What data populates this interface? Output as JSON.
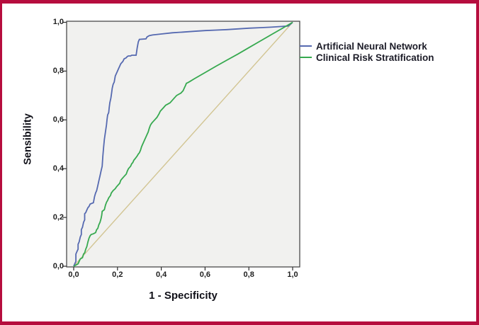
{
  "frame": {
    "border_color": "#b60d3e",
    "background": "#ffffff"
  },
  "chart_data": {
    "type": "line",
    "title": "",
    "xlabel": "1 - Specificity",
    "ylabel": "Sensibility",
    "xlim": [
      0,
      1
    ],
    "ylim": [
      0,
      1
    ],
    "grid": false,
    "plot_background": "#f1f1ef",
    "plot_border_color": "#3d3d3d",
    "tick_color": "#2b2b2b",
    "decimal_separator": ",",
    "ticks": {
      "values": [
        0,
        0.2,
        0.4,
        0.6,
        0.8,
        1.0
      ],
      "x_labels": [
        "0,0",
        "0,2",
        "0,4",
        "0,6",
        "0,8",
        "1,0"
      ],
      "y_labels": [
        "0,0",
        "0,2",
        "0,4",
        "0,6",
        "0,8",
        "1,0"
      ]
    },
    "legend": {
      "position": "right-top",
      "entries": [
        {
          "label": "Artificial Neural Network",
          "color": "#5569b0"
        },
        {
          "label": "Clinical Risk Stratification",
          "color": "#36a94f"
        }
      ]
    },
    "series": [
      {
        "name": "Reference Line",
        "color": "#d2c593",
        "points": [
          [
            0,
            0
          ],
          [
            1,
            1
          ]
        ]
      },
      {
        "name": "Artificial Neural Network",
        "color": "#5569b0",
        "points": [
          [
            0,
            0
          ],
          [
            0.005,
            0.01
          ],
          [
            0.01,
            0.02
          ],
          [
            0.01,
            0.05
          ],
          [
            0.015,
            0.06
          ],
          [
            0.02,
            0.07
          ],
          [
            0.02,
            0.09
          ],
          [
            0.025,
            0.1
          ],
          [
            0.03,
            0.12
          ],
          [
            0.035,
            0.13
          ],
          [
            0.035,
            0.15
          ],
          [
            0.04,
            0.16
          ],
          [
            0.045,
            0.18
          ],
          [
            0.05,
            0.19
          ],
          [
            0.05,
            0.215
          ],
          [
            0.055,
            0.22
          ],
          [
            0.06,
            0.23
          ],
          [
            0.065,
            0.24
          ],
          [
            0.07,
            0.245
          ],
          [
            0.075,
            0.255
          ],
          [
            0.09,
            0.26
          ],
          [
            0.095,
            0.285
          ],
          [
            0.1,
            0.3
          ],
          [
            0.105,
            0.31
          ],
          [
            0.11,
            0.33
          ],
          [
            0.115,
            0.35
          ],
          [
            0.12,
            0.37
          ],
          [
            0.125,
            0.39
          ],
          [
            0.13,
            0.41
          ],
          [
            0.133,
            0.45
          ],
          [
            0.137,
            0.49
          ],
          [
            0.14,
            0.52
          ],
          [
            0.145,
            0.55
          ],
          [
            0.15,
            0.58
          ],
          [
            0.152,
            0.6
          ],
          [
            0.155,
            0.62
          ],
          [
            0.16,
            0.63
          ],
          [
            0.162,
            0.65
          ],
          [
            0.165,
            0.67
          ],
          [
            0.17,
            0.69
          ],
          [
            0.173,
            0.71
          ],
          [
            0.176,
            0.73
          ],
          [
            0.18,
            0.745
          ],
          [
            0.185,
            0.755
          ],
          [
            0.188,
            0.77
          ],
          [
            0.19,
            0.78
          ],
          [
            0.195,
            0.79
          ],
          [
            0.2,
            0.8
          ],
          [
            0.205,
            0.81
          ],
          [
            0.21,
            0.82
          ],
          [
            0.215,
            0.83
          ],
          [
            0.225,
            0.84
          ],
          [
            0.23,
            0.85
          ],
          [
            0.24,
            0.855
          ],
          [
            0.245,
            0.86
          ],
          [
            0.25,
            0.862
          ],
          [
            0.26,
            0.862
          ],
          [
            0.265,
            0.865
          ],
          [
            0.285,
            0.865
          ],
          [
            0.29,
            0.895
          ],
          [
            0.295,
            0.92
          ],
          [
            0.3,
            0.93
          ],
          [
            0.33,
            0.932
          ],
          [
            0.335,
            0.94
          ],
          [
            0.345,
            0.945
          ],
          [
            0.36,
            0.948
          ],
          [
            0.4,
            0.952
          ],
          [
            0.45,
            0.957
          ],
          [
            0.5,
            0.96
          ],
          [
            0.55,
            0.963
          ],
          [
            0.6,
            0.966
          ],
          [
            0.65,
            0.968
          ],
          [
            0.7,
            0.97
          ],
          [
            0.75,
            0.973
          ],
          [
            0.8,
            0.976
          ],
          [
            0.85,
            0.978
          ],
          [
            0.9,
            0.98
          ],
          [
            0.95,
            0.983
          ],
          [
            0.98,
            0.985
          ],
          [
            1,
            1
          ]
        ]
      },
      {
        "name": "Clinical Risk Stratification",
        "color": "#36a94f",
        "points": [
          [
            0,
            0
          ],
          [
            0.01,
            0.005
          ],
          [
            0.02,
            0.01
          ],
          [
            0.025,
            0.02
          ],
          [
            0.03,
            0.03
          ],
          [
            0.04,
            0.035
          ],
          [
            0.045,
            0.05
          ],
          [
            0.05,
            0.055
          ],
          [
            0.055,
            0.07
          ],
          [
            0.06,
            0.08
          ],
          [
            0.065,
            0.1
          ],
          [
            0.07,
            0.115
          ],
          [
            0.075,
            0.125
          ],
          [
            0.08,
            0.13
          ],
          [
            0.09,
            0.133
          ],
          [
            0.1,
            0.138
          ],
          [
            0.105,
            0.15
          ],
          [
            0.11,
            0.155
          ],
          [
            0.115,
            0.17
          ],
          [
            0.12,
            0.18
          ],
          [
            0.125,
            0.195
          ],
          [
            0.128,
            0.21
          ],
          [
            0.13,
            0.225
          ],
          [
            0.14,
            0.232
          ],
          [
            0.145,
            0.25
          ],
          [
            0.15,
            0.262
          ],
          [
            0.155,
            0.27
          ],
          [
            0.16,
            0.28
          ],
          [
            0.168,
            0.29
          ],
          [
            0.172,
            0.3
          ],
          [
            0.18,
            0.31
          ],
          [
            0.19,
            0.318
          ],
          [
            0.195,
            0.325
          ],
          [
            0.2,
            0.33
          ],
          [
            0.21,
            0.34
          ],
          [
            0.215,
            0.352
          ],
          [
            0.22,
            0.358
          ],
          [
            0.23,
            0.368
          ],
          [
            0.24,
            0.378
          ],
          [
            0.245,
            0.39
          ],
          [
            0.25,
            0.4
          ],
          [
            0.26,
            0.41
          ],
          [
            0.265,
            0.42
          ],
          [
            0.27,
            0.425
          ],
          [
            0.275,
            0.435
          ],
          [
            0.28,
            0.44
          ],
          [
            0.29,
            0.452
          ],
          [
            0.295,
            0.46
          ],
          [
            0.3,
            0.465
          ],
          [
            0.305,
            0.475
          ],
          [
            0.31,
            0.49
          ],
          [
            0.315,
            0.5
          ],
          [
            0.32,
            0.51
          ],
          [
            0.325,
            0.52
          ],
          [
            0.33,
            0.53
          ],
          [
            0.335,
            0.54
          ],
          [
            0.34,
            0.55
          ],
          [
            0.345,
            0.565
          ],
          [
            0.35,
            0.577
          ],
          [
            0.355,
            0.585
          ],
          [
            0.36,
            0.59
          ],
          [
            0.37,
            0.6
          ],
          [
            0.38,
            0.61
          ],
          [
            0.39,
            0.625
          ],
          [
            0.395,
            0.635
          ],
          [
            0.4,
            0.64
          ],
          [
            0.41,
            0.65
          ],
          [
            0.42,
            0.66
          ],
          [
            0.43,
            0.665
          ],
          [
            0.44,
            0.67
          ],
          [
            0.45,
            0.68
          ],
          [
            0.46,
            0.69
          ],
          [
            0.47,
            0.7
          ],
          [
            0.48,
            0.705
          ],
          [
            0.49,
            0.71
          ],
          [
            0.5,
            0.72
          ],
          [
            0.505,
            0.73
          ],
          [
            0.51,
            0.74
          ],
          [
            0.515,
            0.75
          ],
          [
            0.52,
            0.752
          ],
          [
            0.53,
            0.757
          ],
          [
            0.55,
            0.768
          ],
          [
            0.6,
            0.794
          ],
          [
            0.65,
            0.82
          ],
          [
            0.7,
            0.845
          ],
          [
            0.75,
            0.87
          ],
          [
            0.8,
            0.896
          ],
          [
            0.85,
            0.922
          ],
          [
            0.9,
            0.948
          ],
          [
            0.95,
            0.974
          ],
          [
            1,
            1
          ]
        ]
      }
    ]
  }
}
